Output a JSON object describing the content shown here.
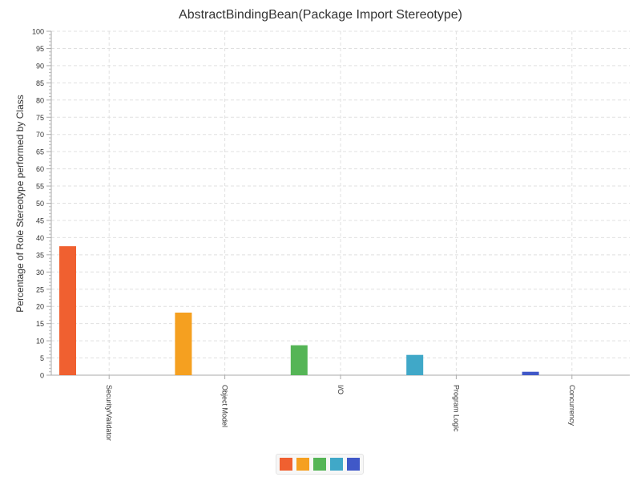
{
  "chart_data": {
    "type": "bar",
    "title": "AbstractBindingBean(Package Import Stereotype)",
    "xlabel": "",
    "ylabel": "Percentage of Role Stereotype performed by Class",
    "ylim": [
      0,
      100
    ],
    "yticks": [
      0,
      5,
      10,
      15,
      20,
      25,
      30,
      35,
      40,
      45,
      50,
      55,
      60,
      65,
      70,
      75,
      80,
      85,
      90,
      95,
      100
    ],
    "grid": true,
    "legend": "bottom-center",
    "categories": [
      "Security/Validator",
      "Object Model",
      "I/O",
      "Program Logic",
      "Concurrency"
    ],
    "values": [
      37.5,
      18.2,
      8.7,
      5.9,
      1.0
    ],
    "colors": [
      "#f06030",
      "#f5a020",
      "#55b556",
      "#40a8c8",
      "#4058c8"
    ]
  }
}
